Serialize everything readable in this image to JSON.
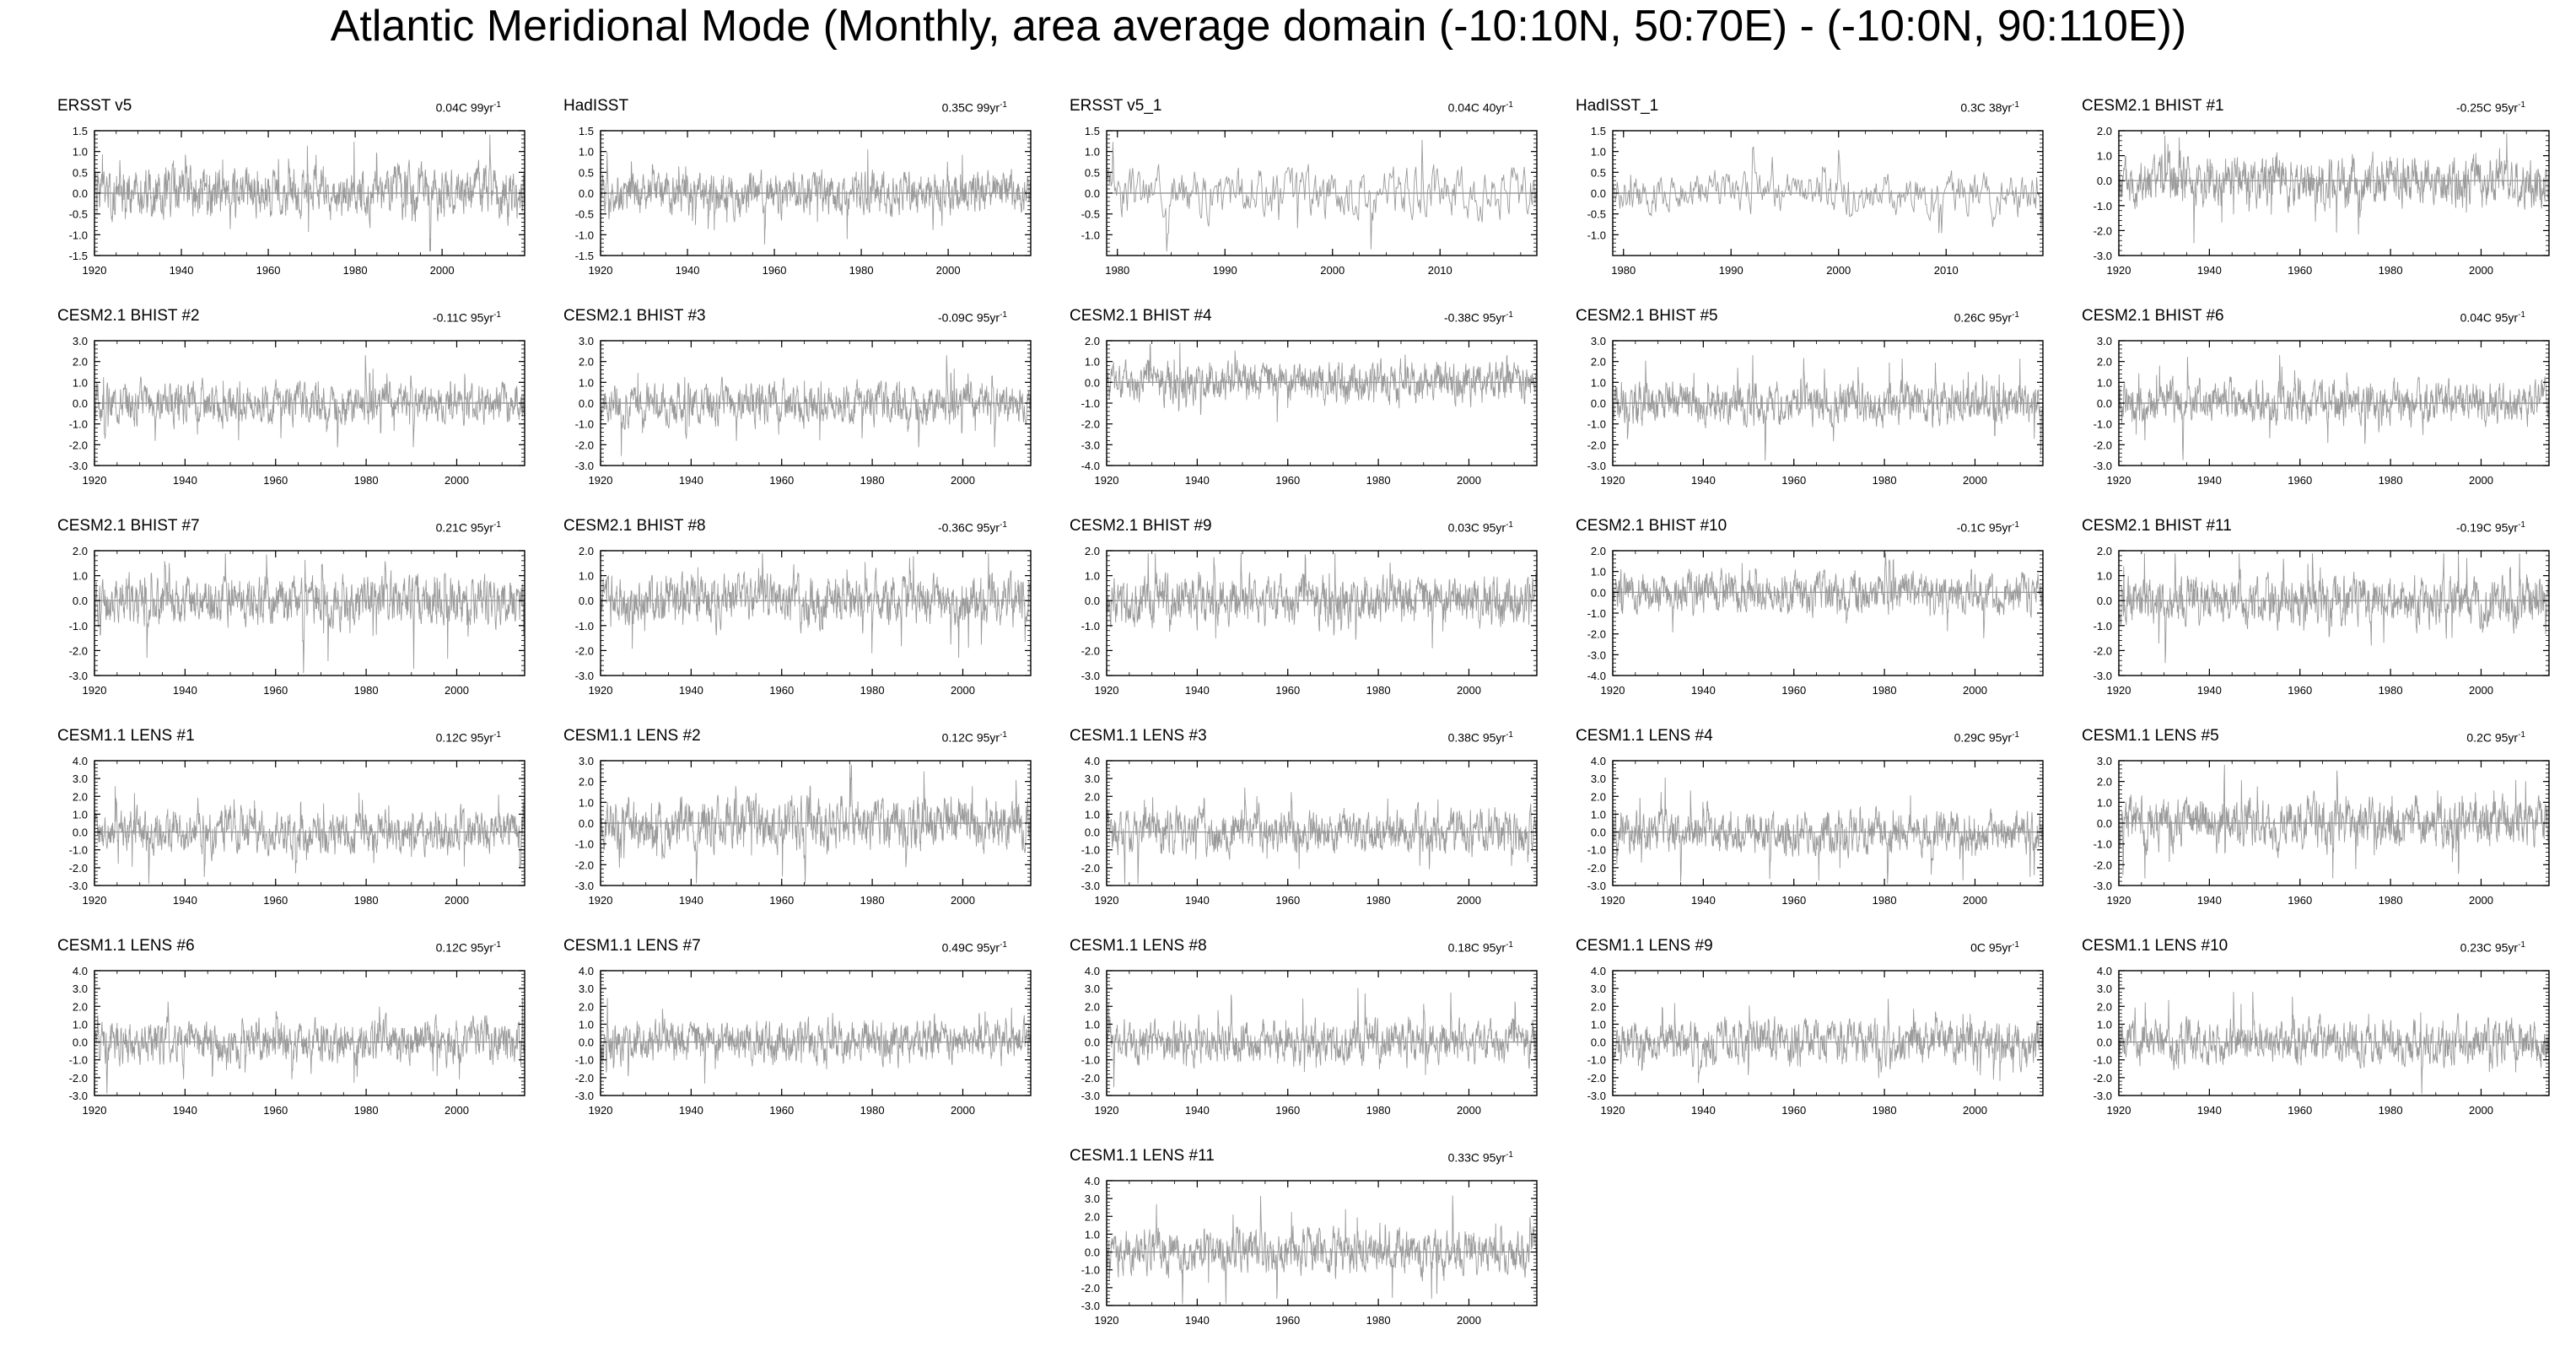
{
  "page": {
    "title": "Atlantic Meridional Mode (Monthly, area average domain (-10:10N, 50:70E) - (-10:0N, 90:110E))"
  },
  "chart_data": [
    {
      "type": "line",
      "title": "ERSST v5",
      "trend": "0.04C 99yr",
      "trend_exp": "-1",
      "xlim": [
        1920,
        2019
      ],
      "ylim": [
        -1.5,
        1.5
      ],
      "yticks": [
        -1.5,
        -1.0,
        -0.5,
        0.0,
        0.5,
        1.0,
        1.5
      ],
      "xticks": [
        1920,
        1940,
        1960,
        1980,
        2000
      ],
      "amplitude": 0.55,
      "seed": 1
    },
    {
      "type": "line",
      "title": "HadISST",
      "trend": "0.35C 99yr",
      "trend_exp": "-1",
      "xlim": [
        1920,
        2019
      ],
      "ylim": [
        -1.5,
        1.5
      ],
      "yticks": [
        -1.5,
        -1.0,
        -0.5,
        0.0,
        0.5,
        1.0,
        1.5
      ],
      "xticks": [
        1920,
        1940,
        1960,
        1980,
        2000
      ],
      "amplitude": 0.45,
      "seed": 2
    },
    {
      "type": "line",
      "title": "ERSST v5_1",
      "trend": "0.04C 40yr",
      "trend_exp": "-1",
      "xlim": [
        1979,
        2019
      ],
      "ylim": [
        -1.5,
        1.5
      ],
      "yticks": [
        -1.0,
        -0.5,
        0.0,
        0.5,
        1.0,
        1.5
      ],
      "xticks": [
        1980,
        1990,
        2000,
        2010
      ],
      "amplitude": 0.55,
      "seed": 3
    },
    {
      "type": "line",
      "title": "HadISST_1",
      "trend": "0.3C 38yr",
      "trend_exp": "-1",
      "xlim": [
        1979,
        2019
      ],
      "ylim": [
        -1.5,
        1.5
      ],
      "yticks": [
        -1.0,
        -0.5,
        0.0,
        0.5,
        1.0,
        1.5
      ],
      "xticks": [
        1980,
        1990,
        2000,
        2010
      ],
      "amplitude": 0.45,
      "seed": 4
    },
    {
      "type": "line",
      "title": "CESM2.1 BHIST #1",
      "trend": "-0.25C 95yr",
      "trend_exp": "-1",
      "xlim": [
        1920,
        2015
      ],
      "ylim": [
        -3.0,
        2.0
      ],
      "yticks": [
        -3.0,
        -2.0,
        -1.0,
        0.0,
        1.0,
        2.0
      ],
      "xticks": [
        1920,
        1940,
        1960,
        1980,
        2000
      ],
      "amplitude": 0.9,
      "seed": 5
    },
    {
      "type": "line",
      "title": "CESM2.1 BHIST #2",
      "trend": "-0.11C 95yr",
      "trend_exp": "-1",
      "xlim": [
        1920,
        2015
      ],
      "ylim": [
        -3.0,
        3.0
      ],
      "yticks": [
        -3.0,
        -2.0,
        -1.0,
        0.0,
        1.0,
        2.0,
        3.0
      ],
      "xticks": [
        1920,
        1940,
        1960,
        1980,
        2000
      ],
      "amplitude": 0.9,
      "seed": 6
    },
    {
      "type": "line",
      "title": "CESM2.1 BHIST #3",
      "trend": "-0.09C 95yr",
      "trend_exp": "-1",
      "xlim": [
        1920,
        2015
      ],
      "ylim": [
        -3.0,
        3.0
      ],
      "yticks": [
        -3.0,
        -2.0,
        -1.0,
        0.0,
        1.0,
        2.0,
        3.0
      ],
      "xticks": [
        1920,
        1940,
        1960,
        1980,
        2000
      ],
      "amplitude": 0.9,
      "seed": 7
    },
    {
      "type": "line",
      "title": "CESM2.1 BHIST #4",
      "trend": "-0.38C 95yr",
      "trend_exp": "-1",
      "xlim": [
        1920,
        2015
      ],
      "ylim": [
        -4.0,
        2.0
      ],
      "yticks": [
        -4.0,
        -3.0,
        -2.0,
        -1.0,
        0.0,
        1.0,
        2.0
      ],
      "xticks": [
        1920,
        1940,
        1960,
        1980,
        2000
      ],
      "amplitude": 0.9,
      "seed": 8
    },
    {
      "type": "line",
      "title": "CESM2.1 BHIST #5",
      "trend": "0.26C 95yr",
      "trend_exp": "-1",
      "xlim": [
        1920,
        2015
      ],
      "ylim": [
        -3.0,
        3.0
      ],
      "yticks": [
        -3.0,
        -2.0,
        -1.0,
        0.0,
        1.0,
        2.0,
        3.0
      ],
      "xticks": [
        1920,
        1940,
        1960,
        1980,
        2000
      ],
      "amplitude": 0.9,
      "seed": 9
    },
    {
      "type": "line",
      "title": "CESM2.1 BHIST #6",
      "trend": "0.04C 95yr",
      "trend_exp": "-1",
      "xlim": [
        1920,
        2015
      ],
      "ylim": [
        -3.0,
        3.0
      ],
      "yticks": [
        -3.0,
        -2.0,
        -1.0,
        0.0,
        1.0,
        2.0,
        3.0
      ],
      "xticks": [
        1920,
        1940,
        1960,
        1980,
        2000
      ],
      "amplitude": 0.9,
      "seed": 10
    },
    {
      "type": "line",
      "title": "CESM2.1 BHIST #7",
      "trend": "0.21C 95yr",
      "trend_exp": "-1",
      "xlim": [
        1920,
        2015
      ],
      "ylim": [
        -3.0,
        2.0
      ],
      "yticks": [
        -3.0,
        -2.0,
        -1.0,
        0.0,
        1.0,
        2.0
      ],
      "xticks": [
        1920,
        1940,
        1960,
        1980,
        2000
      ],
      "amplitude": 0.9,
      "seed": 11
    },
    {
      "type": "line",
      "title": "CESM2.1 BHIST #8",
      "trend": "-0.36C 95yr",
      "trend_exp": "-1",
      "xlim": [
        1920,
        2015
      ],
      "ylim": [
        -3.0,
        2.0
      ],
      "yticks": [
        -3.0,
        -2.0,
        -1.0,
        0.0,
        1.0,
        2.0
      ],
      "xticks": [
        1920,
        1940,
        1960,
        1980,
        2000
      ],
      "amplitude": 0.9,
      "seed": 12
    },
    {
      "type": "line",
      "title": "CESM2.1 BHIST #9",
      "trend": "0.03C 95yr",
      "trend_exp": "-1",
      "xlim": [
        1920,
        2015
      ],
      "ylim": [
        -3.0,
        2.0
      ],
      "yticks": [
        -3.0,
        -2.0,
        -1.0,
        0.0,
        1.0,
        2.0
      ],
      "xticks": [
        1920,
        1940,
        1960,
        1980,
        2000
      ],
      "amplitude": 0.9,
      "seed": 13
    },
    {
      "type": "line",
      "title": "CESM2.1 BHIST #10",
      "trend": "-0.1C 95yr",
      "trend_exp": "-1",
      "xlim": [
        1920,
        2015
      ],
      "ylim": [
        -4.0,
        2.0
      ],
      "yticks": [
        -4.0,
        -3.0,
        -2.0,
        -1.0,
        0.0,
        1.0,
        2.0
      ],
      "xticks": [
        1920,
        1940,
        1960,
        1980,
        2000
      ],
      "amplitude": 0.9,
      "seed": 14
    },
    {
      "type": "line",
      "title": "CESM2.1 BHIST #11",
      "trend": "-0.19C 95yr",
      "trend_exp": "-1",
      "xlim": [
        1920,
        2015
      ],
      "ylim": [
        -3.0,
        2.0
      ],
      "yticks": [
        -3.0,
        -2.0,
        -1.0,
        0.0,
        1.0,
        2.0
      ],
      "xticks": [
        1920,
        1940,
        1960,
        1980,
        2000
      ],
      "amplitude": 0.9,
      "seed": 15
    },
    {
      "type": "line",
      "title": "CESM1.1 LENS #1",
      "trend": "0.12C 95yr",
      "trend_exp": "-1",
      "xlim": [
        1920,
        2015
      ],
      "ylim": [
        -3.0,
        4.0
      ],
      "yticks": [
        -3.0,
        -2.0,
        -1.0,
        0.0,
        1.0,
        2.0,
        3.0,
        4.0
      ],
      "xticks": [
        1920,
        1940,
        1960,
        1980,
        2000
      ],
      "amplitude": 1.1,
      "seed": 16
    },
    {
      "type": "line",
      "title": "CESM1.1 LENS #2",
      "trend": "0.12C 95yr",
      "trend_exp": "-1",
      "xlim": [
        1920,
        2015
      ],
      "ylim": [
        -3.0,
        3.0
      ],
      "yticks": [
        -3.0,
        -2.0,
        -1.0,
        0.0,
        1.0,
        2.0,
        3.0
      ],
      "xticks": [
        1920,
        1940,
        1960,
        1980,
        2000
      ],
      "amplitude": 1.1,
      "seed": 17
    },
    {
      "type": "line",
      "title": "CESM1.1 LENS #3",
      "trend": "0.38C 95yr",
      "trend_exp": "-1",
      "xlim": [
        1920,
        2015
      ],
      "ylim": [
        -3.0,
        4.0
      ],
      "yticks": [
        -3.0,
        -2.0,
        -1.0,
        0.0,
        1.0,
        2.0,
        3.0,
        4.0
      ],
      "xticks": [
        1920,
        1940,
        1960,
        1980,
        2000
      ],
      "amplitude": 1.1,
      "seed": 18
    },
    {
      "type": "line",
      "title": "CESM1.1 LENS #4",
      "trend": "0.29C 95yr",
      "trend_exp": "-1",
      "xlim": [
        1920,
        2015
      ],
      "ylim": [
        -3.0,
        4.0
      ],
      "yticks": [
        -3.0,
        -2.0,
        -1.0,
        0.0,
        1.0,
        2.0,
        3.0,
        4.0
      ],
      "xticks": [
        1920,
        1940,
        1960,
        1980,
        2000
      ],
      "amplitude": 1.1,
      "seed": 19
    },
    {
      "type": "line",
      "title": "CESM1.1 LENS #5",
      "trend": "0.2C 95yr",
      "trend_exp": "-1",
      "xlim": [
        1920,
        2015
      ],
      "ylim": [
        -3.0,
        3.0
      ],
      "yticks": [
        -3.0,
        -2.0,
        -1.0,
        0.0,
        1.0,
        2.0,
        3.0
      ],
      "xticks": [
        1920,
        1940,
        1960,
        1980,
        2000
      ],
      "amplitude": 1.1,
      "seed": 20
    },
    {
      "type": "line",
      "title": "CESM1.1 LENS #6",
      "trend": "0.12C 95yr",
      "trend_exp": "-1",
      "xlim": [
        1920,
        2015
      ],
      "ylim": [
        -3.0,
        4.0
      ],
      "yticks": [
        -3.0,
        -2.0,
        -1.0,
        0.0,
        1.0,
        2.0,
        3.0,
        4.0
      ],
      "xticks": [
        1920,
        1940,
        1960,
        1980,
        2000
      ],
      "amplitude": 1.1,
      "seed": 21
    },
    {
      "type": "line",
      "title": "CESM1.1 LENS #7",
      "trend": "0.49C 95yr",
      "trend_exp": "-1",
      "xlim": [
        1920,
        2015
      ],
      "ylim": [
        -3.0,
        4.0
      ],
      "yticks": [
        -3.0,
        -2.0,
        -1.0,
        0.0,
        1.0,
        2.0,
        3.0,
        4.0
      ],
      "xticks": [
        1920,
        1940,
        1960,
        1980,
        2000
      ],
      "amplitude": 1.1,
      "seed": 22
    },
    {
      "type": "line",
      "title": "CESM1.1 LENS #8",
      "trend": "0.18C 95yr",
      "trend_exp": "-1",
      "xlim": [
        1920,
        2015
      ],
      "ylim": [
        -3.0,
        4.0
      ],
      "yticks": [
        -3.0,
        -2.0,
        -1.0,
        0.0,
        1.0,
        2.0,
        3.0,
        4.0
      ],
      "xticks": [
        1920,
        1940,
        1960,
        1980,
        2000
      ],
      "amplitude": 1.1,
      "seed": 23
    },
    {
      "type": "line",
      "title": "CESM1.1 LENS #9",
      "trend": "0C 95yr",
      "trend_exp": "-1",
      "xlim": [
        1920,
        2015
      ],
      "ylim": [
        -3.0,
        4.0
      ],
      "yticks": [
        -3.0,
        -2.0,
        -1.0,
        0.0,
        1.0,
        2.0,
        3.0,
        4.0
      ],
      "xticks": [
        1920,
        1940,
        1960,
        1980,
        2000
      ],
      "amplitude": 1.1,
      "seed": 24
    },
    {
      "type": "line",
      "title": "CESM1.1 LENS #10",
      "trend": "0.23C 95yr",
      "trend_exp": "-1",
      "xlim": [
        1920,
        2015
      ],
      "ylim": [
        -3.0,
        4.0
      ],
      "yticks": [
        -3.0,
        -2.0,
        -1.0,
        0.0,
        1.0,
        2.0,
        3.0,
        4.0
      ],
      "xticks": [
        1920,
        1940,
        1960,
        1980,
        2000
      ],
      "amplitude": 1.1,
      "seed": 25
    },
    {
      "type": "line",
      "title": "CESM1.1 LENS #11",
      "trend": "0.33C 95yr",
      "trend_exp": "-1",
      "xlim": [
        1920,
        2015
      ],
      "ylim": [
        -3.0,
        4.0
      ],
      "yticks": [
        -3.0,
        -2.0,
        -1.0,
        0.0,
        1.0,
        2.0,
        3.0,
        4.0
      ],
      "xticks": [
        1920,
        1940,
        1960,
        1980,
        2000
      ],
      "amplitude": 1.1,
      "seed": 26
    }
  ]
}
